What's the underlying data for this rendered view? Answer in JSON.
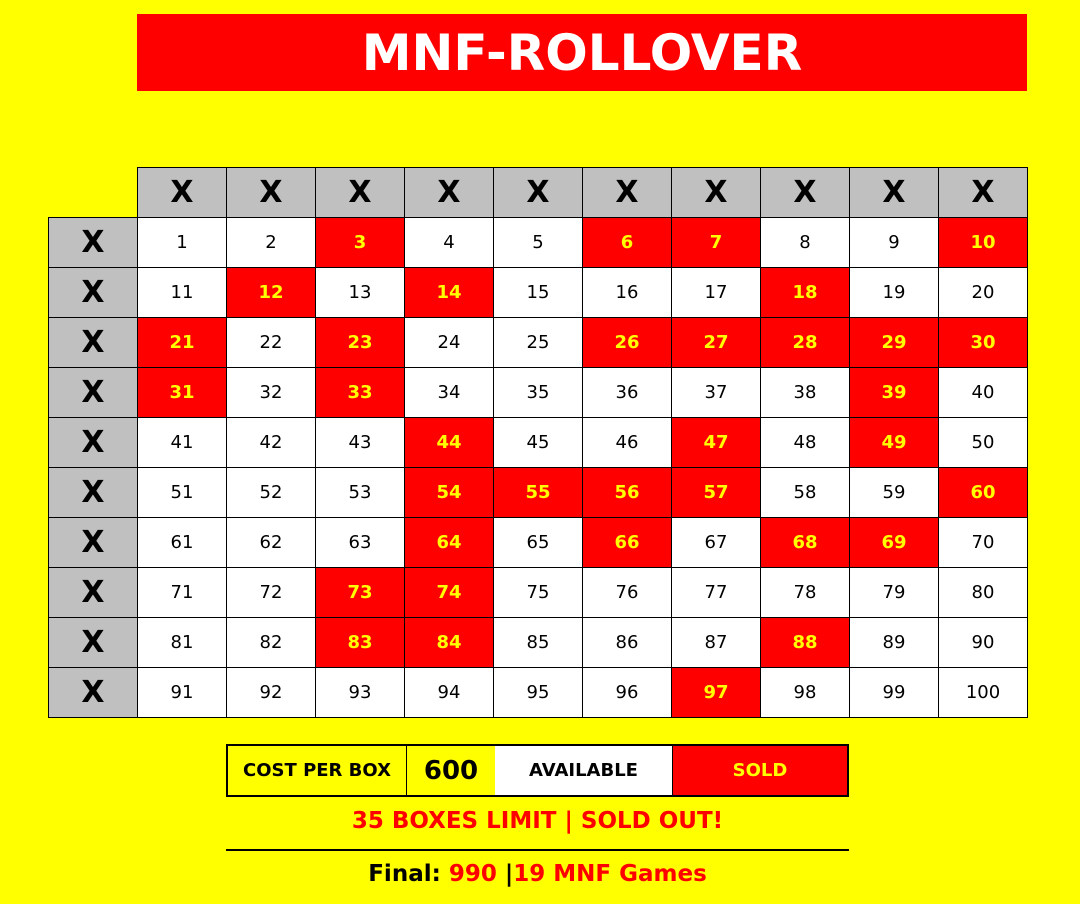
{
  "title": "MNF-ROLLOVER",
  "grid": {
    "column_headers": [
      "X",
      "X",
      "X",
      "X",
      "X",
      "X",
      "X",
      "X",
      "X",
      "X"
    ],
    "row_headers": [
      "X",
      "X",
      "X",
      "X",
      "X",
      "X",
      "X",
      "X",
      "X",
      "X"
    ],
    "numbers_from": 1,
    "numbers_to": 100,
    "sold": [
      3,
      6,
      7,
      10,
      12,
      14,
      18,
      21,
      23,
      26,
      27,
      28,
      29,
      30,
      31,
      33,
      39,
      44,
      47,
      49,
      54,
      55,
      56,
      57,
      60,
      64,
      66,
      68,
      69,
      73,
      74,
      83,
      84,
      88,
      97
    ]
  },
  "legend": {
    "cost_label": "COST PER BOX",
    "cost_value": "600",
    "available_label": "AVAILABLE",
    "sold_label": "SOLD"
  },
  "limit_text": "35 BOXES LIMIT | SOLD OUT!",
  "final": {
    "label": "Final:",
    "value": "990",
    "separator": "|",
    "games": "19 MNF Games"
  },
  "colors": {
    "background": "#ffff00",
    "sold": "#ff0000",
    "sold_text": "#ffff00",
    "available": "#ffffff",
    "header": "#c0c0c0"
  }
}
